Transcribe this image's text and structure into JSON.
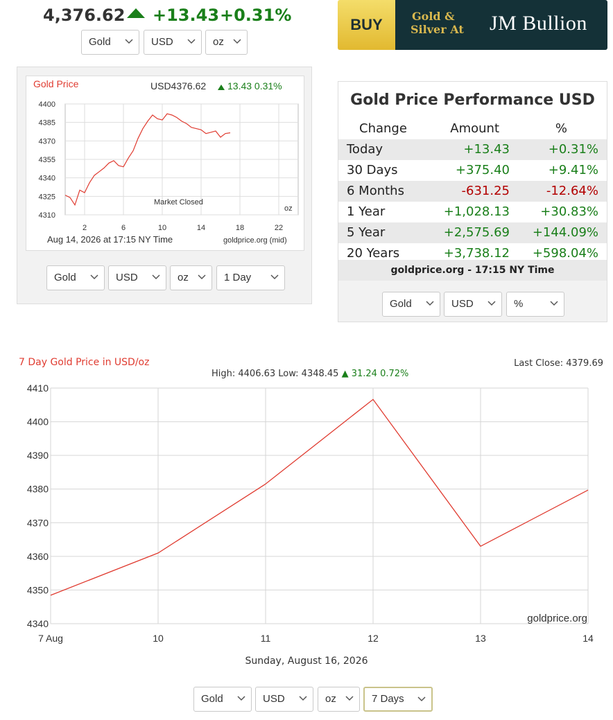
{
  "header": {
    "price": "4,376.62",
    "change": "+13.43",
    "change_pct": "+0.31%",
    "arrow_icon": "up-triangle-icon",
    "selects": {
      "metal": "Gold",
      "currency": "USD",
      "unit": "oz"
    }
  },
  "ad": {
    "buy": "BUY",
    "line1": "Gold &",
    "line2": "Silver At",
    "brand": "JM Bullion"
  },
  "small_chart": {
    "title": "Gold Price",
    "summary_price": "USD4376.62",
    "summary_change": "13.43 0.31%",
    "market_status": "Market Closed",
    "unit": "oz",
    "timestamp": "Aug 14, 2026 at 17:15 NY Time",
    "source": "goldprice.org (mid)",
    "y_ticks": [
      "4400",
      "4385",
      "4370",
      "4355",
      "4340",
      "4325",
      "4310"
    ],
    "x_ticks": [
      "2",
      "6",
      "10",
      "14",
      "18",
      "22"
    ],
    "selects": {
      "metal": "Gold",
      "currency": "USD",
      "unit": "oz",
      "range": "1 Day"
    }
  },
  "performance": {
    "title": "Gold Price Performance USD",
    "headers": [
      "Change",
      "Amount",
      "%"
    ],
    "rows": [
      {
        "label": "Today",
        "amount": "+13.43",
        "pct": "+0.31%",
        "dir": "pos"
      },
      {
        "label": "30 Days",
        "amount": "+375.40",
        "pct": "+9.41%",
        "dir": "pos"
      },
      {
        "label": "6 Months",
        "amount": "-631.25",
        "pct": "-12.64%",
        "dir": "neg"
      },
      {
        "label": "1 Year",
        "amount": "+1,028.13",
        "pct": "+30.83%",
        "dir": "pos"
      },
      {
        "label": "5 Year",
        "amount": "+2,575.69",
        "pct": "+144.09%",
        "dir": "pos"
      },
      {
        "label": "20 Years",
        "amount": "+3,738.12",
        "pct": "+598.04%",
        "dir": "pos"
      }
    ],
    "footer": "goldprice.org - 17:15 NY Time",
    "selects": {
      "metal": "Gold",
      "currency": "USD",
      "mode": "%"
    }
  },
  "chart_data": [
    {
      "type": "line",
      "title": "Gold Price",
      "x": [
        0.0,
        0.5,
        1.0,
        1.5,
        2.0,
        2.5,
        3.0,
        3.5,
        4.0,
        4.5,
        5.0,
        5.5,
        6.0,
        6.5,
        7.0,
        7.5,
        8.0,
        8.5,
        9.0,
        9.5,
        10.0,
        10.5,
        11.0,
        11.5,
        12.0,
        12.5,
        13.0,
        13.5,
        14.0,
        14.5,
        15.0,
        15.5,
        16.0,
        16.5,
        17.0
      ],
      "values": [
        4326,
        4324,
        4318,
        4330,
        4328,
        4336,
        4342,
        4345,
        4348,
        4352,
        4354,
        4350,
        4349,
        4356,
        4362,
        4372,
        4380,
        4386,
        4391,
        4388,
        4387,
        4392,
        4391,
        4389,
        4386,
        4384,
        4381,
        4380,
        4379,
        4376,
        4377,
        4378,
        4373,
        4376,
        4376.62
      ],
      "xlim": [
        0,
        24
      ],
      "ylim": [
        4310,
        4400
      ],
      "x_ticks": [
        2,
        6,
        10,
        14,
        18,
        22
      ],
      "y_ticks": [
        4310,
        4325,
        4340,
        4355,
        4370,
        4385,
        4400
      ],
      "grid": true,
      "xlabel": "",
      "ylabel": ""
    },
    {
      "type": "line",
      "title": "7 Day Gold Price in USD/oz",
      "categories": [
        "7 Aug",
        "10",
        "11",
        "12",
        "13",
        "14"
      ],
      "values": [
        4348.45,
        4361.0,
        4381.5,
        4406.63,
        4363.0,
        4379.69
      ],
      "ylim": [
        4340,
        4410
      ],
      "y_ticks": [
        4340,
        4350,
        4360,
        4370,
        4380,
        4390,
        4400,
        4410
      ],
      "grid": true,
      "xlabel": "",
      "ylabel": "",
      "high_low": "High: 4406.63 Low: 4348.45",
      "high_low_change": "31.24 0.72%",
      "last_close": "Last Close: 4379.69",
      "watermark": "goldprice.org",
      "date_label": "Sunday, August 16, 2026"
    }
  ],
  "big_selects": {
    "metal": "Gold",
    "currency": "USD",
    "unit": "oz",
    "range": "7 Days"
  },
  "colors": {
    "up": "#1a7f1a",
    "down": "#b30000",
    "line": "#e03c31",
    "accent": "#143137",
    "gold": "#d9b84e"
  }
}
